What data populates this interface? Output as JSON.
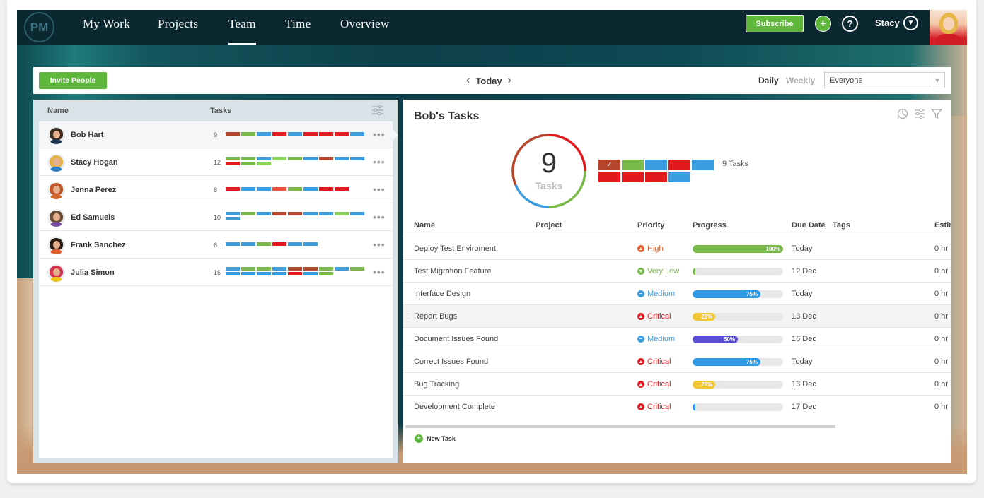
{
  "nav": {
    "logo": "PM",
    "items": [
      "My Work",
      "Projects",
      "Team",
      "Time",
      "Overview"
    ],
    "active": "Team",
    "subscribe_label": "Subscribe",
    "user_name": "Stacy"
  },
  "toolbar": {
    "invite_label": "Invite People",
    "date_label": "Today",
    "view_daily": "Daily",
    "view_weekly": "Weekly",
    "filter_value": "Everyone"
  },
  "team": {
    "col_name": "Name",
    "col_tasks": "Tasks",
    "members": [
      {
        "name": "Bob Hart",
        "count": "9",
        "selected": true,
        "hair": "#3a2a1e",
        "shirt": "#1e3550",
        "bars": [
          "#b5452b",
          "#79b94a",
          "#3b9ddd",
          "#e3191e",
          "#3b9ddd",
          "#e3191e",
          "#e3191e",
          "#e3191e",
          "#3b9ddd"
        ]
      },
      {
        "name": "Stacy Hogan",
        "count": "12",
        "selected": false,
        "hair": "#e6b247",
        "shirt": "#2f7fc4",
        "bars": [
          "#79b94a",
          "#79b94a",
          "#3b9ddd",
          "#8bd35a",
          "#79b94a",
          "#3b9ddd",
          "#b5452b",
          "#3b9ddd",
          "#3b9ddd",
          "#e3191e",
          "#79b94a",
          "#8bd35a"
        ]
      },
      {
        "name": "Jenna Perez",
        "count": "8",
        "selected": false,
        "hair": "#c0562a",
        "shirt": "#d36a2b",
        "bars": [
          "#e3191e",
          "#3b9ddd",
          "#3b9ddd",
          "#e8543a",
          "#79b94a",
          "#3b9ddd",
          "#e3191e",
          "#e3191e"
        ]
      },
      {
        "name": "Ed Samuels",
        "count": "10",
        "selected": false,
        "hair": "#6b4a36",
        "shirt": "#7b4ea0",
        "bars": [
          "#3b9ddd",
          "#79b94a",
          "#3b9ddd",
          "#b5452b",
          "#b5452b",
          "#3b9ddd",
          "#3b9ddd",
          "#8bd35a",
          "#3b9ddd",
          "#3b9ddd"
        ]
      },
      {
        "name": "Frank Sanchez",
        "count": "6",
        "selected": false,
        "hair": "#2b1d14",
        "shirt": "#e35b2a",
        "bars": [
          "#3b9ddd",
          "#3b9ddd",
          "#79b94a",
          "#e3191e",
          "#3b9ddd",
          "#3b9ddd"
        ]
      },
      {
        "name": "Julia Simon",
        "count": "16",
        "selected": false,
        "hair": "#d8344f",
        "shirt": "#f0c419",
        "bars": [
          "#3b9ddd",
          "#79b94a",
          "#79b94a",
          "#3b9ddd",
          "#b5452b",
          "#b5452b",
          "#79b94a",
          "#3b9ddd",
          "#79b94a",
          "#3b9ddd",
          "#3b9ddd",
          "#3b9ddd",
          "#3b9ddd",
          "#e3191e",
          "#3b9ddd",
          "#79b94a"
        ]
      }
    ]
  },
  "tasks_panel": {
    "title": "Bob's Tasks",
    "count": "9",
    "count_label": "Tasks",
    "summary_label": "9 Tasks",
    "summary_cells": [
      "#b5452b",
      "#79b94a",
      "#3b9ddd",
      "#e3191e",
      "#3b9ddd",
      "#e3191e",
      "#e3191e",
      "#e3191e",
      "#3b9ddd"
    ],
    "columns": {
      "name": "Name",
      "project": "Project",
      "priority": "Priority",
      "progress": "Progress",
      "due": "Due Date",
      "tags": "Tags",
      "est": "Estim"
    },
    "rows": [
      {
        "name": "Deploy Test Enviroment",
        "priority": "High",
        "prio_color": "#e35b2a",
        "prio_glyph": "▲",
        "progress": 100,
        "progress_label": "100%",
        "bar_color": "#79b94a",
        "due": "Today",
        "est": "0 hr"
      },
      {
        "name": "Test Migration Feature",
        "priority": "Very Low",
        "prio_color": "#79b94a",
        "prio_glyph": "▼",
        "progress": 0,
        "progress_label": "",
        "bar_color": "#79b94a",
        "due": "12 Dec",
        "est": "0 hr"
      },
      {
        "name": "Interface Design",
        "priority": "Medium",
        "prio_color": "#3b9ddd",
        "prio_glyph": "−",
        "progress": 75,
        "progress_label": "75%",
        "bar_color": "#2f9ae6",
        "due": "Today",
        "est": "0 hr"
      },
      {
        "name": "Report Bugs",
        "priority": "Critical",
        "prio_color": "#e3191e",
        "prio_glyph": "▲",
        "progress": 25,
        "progress_label": "25%",
        "bar_color": "#f0c72e",
        "due": "13 Dec",
        "est": "0 hr",
        "highlight": true
      },
      {
        "name": "Document Issues Found",
        "priority": "Medium",
        "prio_color": "#3b9ddd",
        "prio_glyph": "−",
        "progress": 50,
        "progress_label": "50%",
        "bar_color": "#5b4fd1",
        "due": "16 Dec",
        "est": "0 hr"
      },
      {
        "name": "Correct Issues Found",
        "priority": "Critical",
        "prio_color": "#e3191e",
        "prio_glyph": "▲",
        "progress": 75,
        "progress_label": "75%",
        "bar_color": "#2f9ae6",
        "due": "Today",
        "est": "0 hr"
      },
      {
        "name": "Bug Tracking",
        "priority": "Critical",
        "prio_color": "#e3191e",
        "prio_glyph": "▲",
        "progress": 25,
        "progress_label": "25%",
        "bar_color": "#f0c72e",
        "due": "13 Dec",
        "est": "0 hr"
      },
      {
        "name": "Development Complete",
        "priority": "Critical",
        "prio_color": "#e3191e",
        "prio_glyph": "▲",
        "progress": 0,
        "progress_label": "",
        "bar_color": "#2f9ae6",
        "due": "17 Dec",
        "est": "0 hr"
      }
    ],
    "new_task_label": "New Task"
  },
  "colors": {
    "accent_green": "#5fb83c",
    "nav_bg": "#0b2831",
    "ring_red": "#e3191e",
    "ring_blue": "#3b9ddd",
    "ring_green": "#79b94a"
  }
}
